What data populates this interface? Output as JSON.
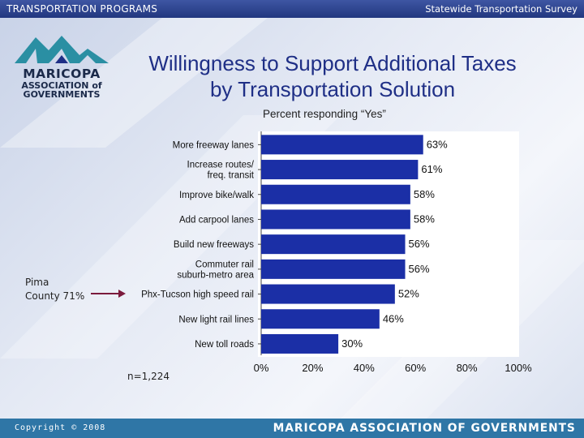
{
  "header": {
    "left": "TRANSPORTATION PROGRAMS",
    "right": "Statewide Transportation Survey"
  },
  "logo": {
    "name": "MARICOPA",
    "line1": "ASSOCIATION of",
    "line2": "GOVERNMENTS"
  },
  "footer": {
    "copyright": "Copyright © 2008",
    "org": "MARICOPA ASSOCIATION OF GOVERNMENTS"
  },
  "colors": {
    "bar": "#1b2fa6",
    "header": "#22377f",
    "footer": "#2f76a6",
    "arrow": "#7b1a3c",
    "title": "#1f2f86"
  },
  "chart_data": {
    "type": "bar",
    "orientation": "horizontal",
    "title_lines": [
      "Willingness to Support Additional Taxes",
      "by Transportation Solution"
    ],
    "subtitle": "Percent responding “Yes”",
    "categories": [
      [
        "More freeway lanes"
      ],
      [
        "Increase routes/",
        "freq. transit"
      ],
      [
        "Improve bike/walk"
      ],
      [
        "Add carpool lanes"
      ],
      [
        "Build new freeways"
      ],
      [
        "Commuter rail",
        "suburb-metro area"
      ],
      [
        "Phx-Tucson high speed rail"
      ],
      [
        "New light rail lines"
      ],
      [
        "New toll roads"
      ]
    ],
    "values": [
      63,
      61,
      58,
      58,
      56,
      56,
      52,
      46,
      30
    ],
    "value_labels": [
      "63%",
      "61%",
      "58%",
      "58%",
      "56%",
      "56%",
      "52%",
      "46%",
      "30%"
    ],
    "xlim": [
      0,
      100
    ],
    "xticks": [
      0,
      20,
      40,
      60,
      80,
      100
    ],
    "xtick_labels": [
      "0%",
      "20%",
      "40%",
      "60%",
      "80%",
      "100%"
    ],
    "annotation": {
      "lines": [
        "Pima",
        "County 71%"
      ],
      "category": "Phx-Tucson high speed rail"
    },
    "note": "n=1,224",
    "grid": false
  }
}
